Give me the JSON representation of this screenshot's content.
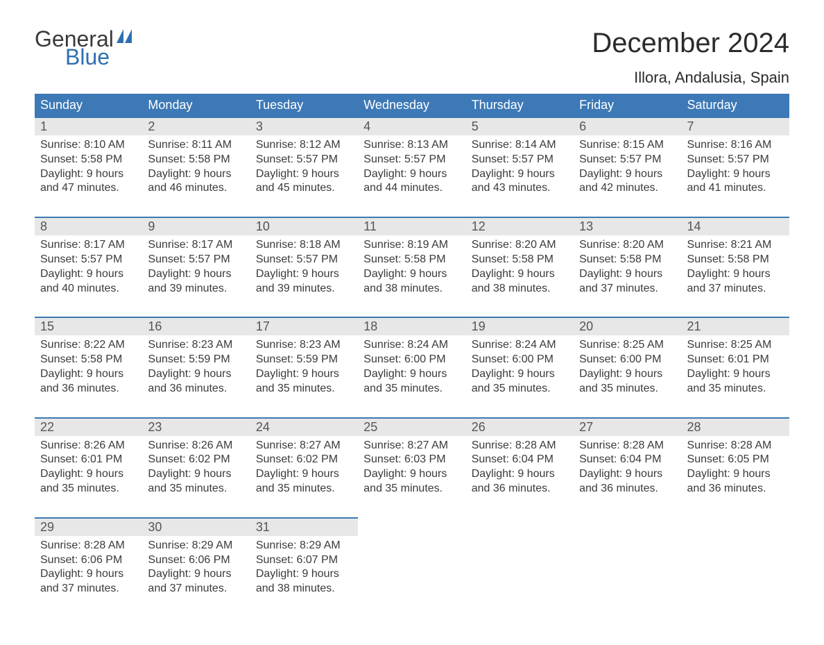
{
  "logo": {
    "general": "General",
    "blue": "Blue"
  },
  "title": "December 2024",
  "location": "Illora, Andalusia, Spain",
  "colors": {
    "header_bg": "#3d79b6",
    "header_text": "#ffffff",
    "daynum_bg": "#e7e7e7",
    "row_border": "#3d79b6",
    "logo_blue": "#2f6fb0",
    "text": "#3a3a3a",
    "background": "#ffffff"
  },
  "typography": {
    "title_fontsize": 40,
    "location_fontsize": 22,
    "header_fontsize": 18,
    "daynum_fontsize": 18,
    "body_fontsize": 16
  },
  "day_headers": [
    "Sunday",
    "Monday",
    "Tuesday",
    "Wednesday",
    "Thursday",
    "Friday",
    "Saturday"
  ],
  "weeks": [
    [
      {
        "n": "1",
        "sr": "8:10 AM",
        "ss": "5:58 PM",
        "dl": "9 hours and 47 minutes."
      },
      {
        "n": "2",
        "sr": "8:11 AM",
        "ss": "5:58 PM",
        "dl": "9 hours and 46 minutes."
      },
      {
        "n": "3",
        "sr": "8:12 AM",
        "ss": "5:57 PM",
        "dl": "9 hours and 45 minutes."
      },
      {
        "n": "4",
        "sr": "8:13 AM",
        "ss": "5:57 PM",
        "dl": "9 hours and 44 minutes."
      },
      {
        "n": "5",
        "sr": "8:14 AM",
        "ss": "5:57 PM",
        "dl": "9 hours and 43 minutes."
      },
      {
        "n": "6",
        "sr": "8:15 AM",
        "ss": "5:57 PM",
        "dl": "9 hours and 42 minutes."
      },
      {
        "n": "7",
        "sr": "8:16 AM",
        "ss": "5:57 PM",
        "dl": "9 hours and 41 minutes."
      }
    ],
    [
      {
        "n": "8",
        "sr": "8:17 AM",
        "ss": "5:57 PM",
        "dl": "9 hours and 40 minutes."
      },
      {
        "n": "9",
        "sr": "8:17 AM",
        "ss": "5:57 PM",
        "dl": "9 hours and 39 minutes."
      },
      {
        "n": "10",
        "sr": "8:18 AM",
        "ss": "5:57 PM",
        "dl": "9 hours and 39 minutes."
      },
      {
        "n": "11",
        "sr": "8:19 AM",
        "ss": "5:58 PM",
        "dl": "9 hours and 38 minutes."
      },
      {
        "n": "12",
        "sr": "8:20 AM",
        "ss": "5:58 PM",
        "dl": "9 hours and 38 minutes."
      },
      {
        "n": "13",
        "sr": "8:20 AM",
        "ss": "5:58 PM",
        "dl": "9 hours and 37 minutes."
      },
      {
        "n": "14",
        "sr": "8:21 AM",
        "ss": "5:58 PM",
        "dl": "9 hours and 37 minutes."
      }
    ],
    [
      {
        "n": "15",
        "sr": "8:22 AM",
        "ss": "5:58 PM",
        "dl": "9 hours and 36 minutes."
      },
      {
        "n": "16",
        "sr": "8:23 AM",
        "ss": "5:59 PM",
        "dl": "9 hours and 36 minutes."
      },
      {
        "n": "17",
        "sr": "8:23 AM",
        "ss": "5:59 PM",
        "dl": "9 hours and 35 minutes."
      },
      {
        "n": "18",
        "sr": "8:24 AM",
        "ss": "6:00 PM",
        "dl": "9 hours and 35 minutes."
      },
      {
        "n": "19",
        "sr": "8:24 AM",
        "ss": "6:00 PM",
        "dl": "9 hours and 35 minutes."
      },
      {
        "n": "20",
        "sr": "8:25 AM",
        "ss": "6:00 PM",
        "dl": "9 hours and 35 minutes."
      },
      {
        "n": "21",
        "sr": "8:25 AM",
        "ss": "6:01 PM",
        "dl": "9 hours and 35 minutes."
      }
    ],
    [
      {
        "n": "22",
        "sr": "8:26 AM",
        "ss": "6:01 PM",
        "dl": "9 hours and 35 minutes."
      },
      {
        "n": "23",
        "sr": "8:26 AM",
        "ss": "6:02 PM",
        "dl": "9 hours and 35 minutes."
      },
      {
        "n": "24",
        "sr": "8:27 AM",
        "ss": "6:02 PM",
        "dl": "9 hours and 35 minutes."
      },
      {
        "n": "25",
        "sr": "8:27 AM",
        "ss": "6:03 PM",
        "dl": "9 hours and 35 minutes."
      },
      {
        "n": "26",
        "sr": "8:28 AM",
        "ss": "6:04 PM",
        "dl": "9 hours and 36 minutes."
      },
      {
        "n": "27",
        "sr": "8:28 AM",
        "ss": "6:04 PM",
        "dl": "9 hours and 36 minutes."
      },
      {
        "n": "28",
        "sr": "8:28 AM",
        "ss": "6:05 PM",
        "dl": "9 hours and 36 minutes."
      }
    ],
    [
      {
        "n": "29",
        "sr": "8:28 AM",
        "ss": "6:06 PM",
        "dl": "9 hours and 37 minutes."
      },
      {
        "n": "30",
        "sr": "8:29 AM",
        "ss": "6:06 PM",
        "dl": "9 hours and 37 minutes."
      },
      {
        "n": "31",
        "sr": "8:29 AM",
        "ss": "6:07 PM",
        "dl": "9 hours and 38 minutes."
      },
      null,
      null,
      null,
      null
    ]
  ],
  "labels": {
    "sunrise": "Sunrise:",
    "sunset": "Sunset:",
    "daylight": "Daylight:"
  }
}
